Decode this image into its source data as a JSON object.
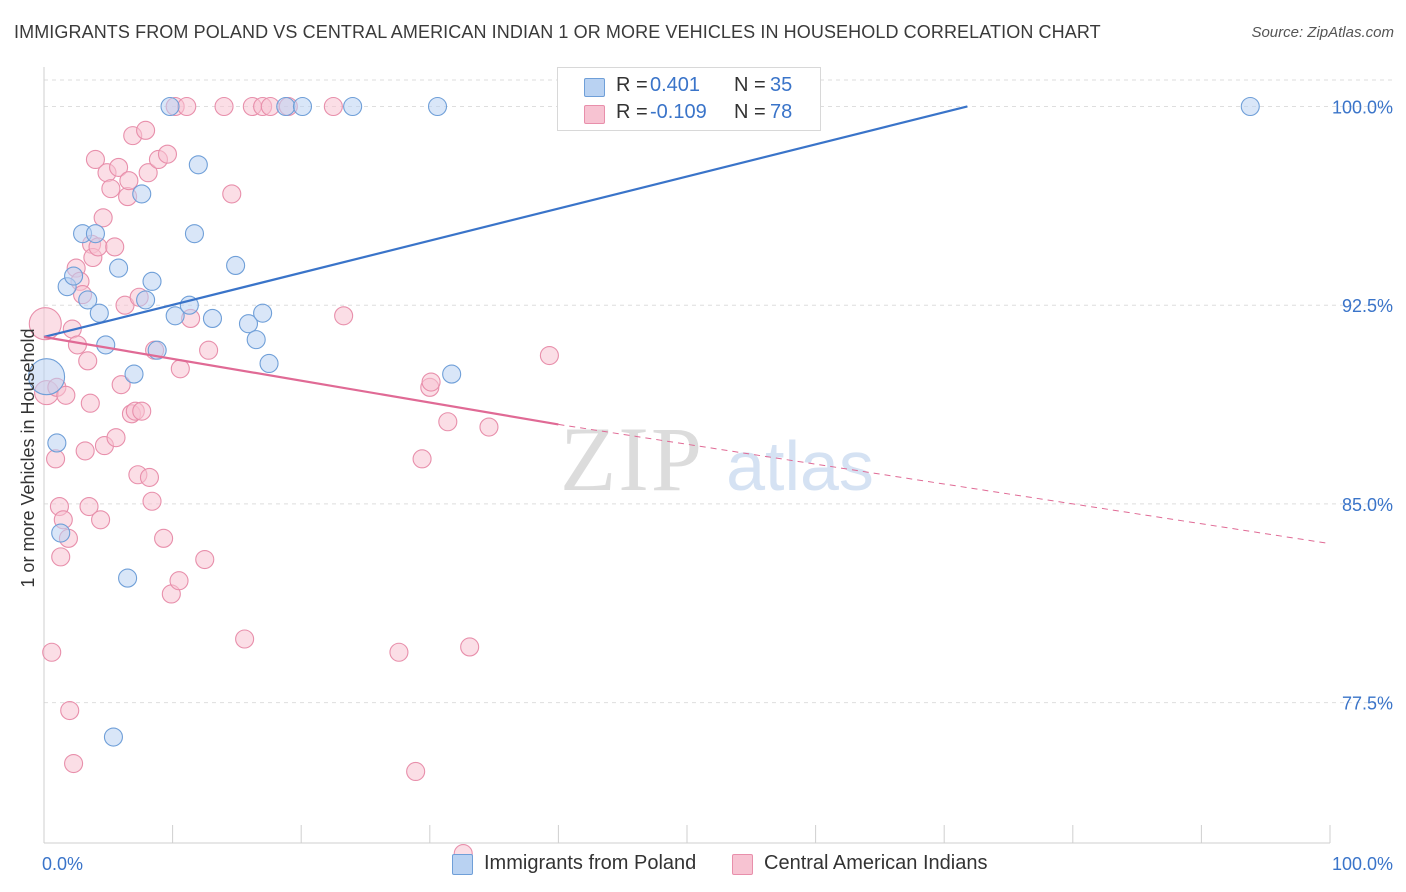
{
  "title": "IMMIGRANTS FROM POLAND VS CENTRAL AMERICAN INDIAN 1 OR MORE VEHICLES IN HOUSEHOLD CORRELATION CHART",
  "source": "Source: ZipAtlas.com",
  "watermark": {
    "zip": "ZIP",
    "atlas": "atlas"
  },
  "legend": {
    "r_label": "R =",
    "n_label": "N =",
    "series": [
      {
        "r": "0.401",
        "n": "35"
      },
      {
        "r": "-0.109",
        "n": "78"
      }
    ]
  },
  "colors": {
    "blue_fill": "#b9d2f2",
    "blue_stroke": "#6f9fd8",
    "blue_line": "#3a74c9",
    "pink_fill": "#f7c3d2",
    "pink_stroke": "#e88fab",
    "pink_line": "#e06a95",
    "value_text": "#3a74c9",
    "grid": "#dedede"
  },
  "chart_data": {
    "type": "scatter",
    "title": "IMMIGRANTS FROM POLAND VS CENTRAL AMERICAN INDIAN 1 OR MORE VEHICLES IN HOUSEHOLD CORRELATION CHART",
    "xlabel": "",
    "ylabel": "1 or more Vehicles in Household",
    "xlim": [
      0,
      100
    ],
    "ylim": [
      72.2,
      101.0
    ],
    "x_tick_labels": [
      {
        "value": 0,
        "label": "0.0%"
      },
      {
        "value": 100,
        "label": "100.0%"
      }
    ],
    "y_ticks": [
      {
        "value": 100.0,
        "label": "100.0%"
      },
      {
        "value": 92.5,
        "label": "92.5%"
      },
      {
        "value": 85.0,
        "label": "85.0%"
      },
      {
        "value": 77.5,
        "label": "77.5%"
      }
    ],
    "x_minor_ticks": [
      10,
      20,
      30,
      40,
      50,
      60,
      70,
      80,
      90,
      100
    ],
    "series": [
      {
        "name": "Immigrants from Poland",
        "color": "blue",
        "trend": {
          "x0": 0,
          "y0": 91.3,
          "x1": 71.8,
          "y1": 100.0
        },
        "points": [
          [
            0.2,
            89.8,
            18
          ],
          [
            1.0,
            87.3,
            9
          ],
          [
            1.3,
            83.9,
            9
          ],
          [
            1.8,
            93.2,
            9
          ],
          [
            2.3,
            93.6,
            9
          ],
          [
            3.0,
            95.2,
            9
          ],
          [
            3.4,
            92.7,
            9
          ],
          [
            4.0,
            95.2,
            9
          ],
          [
            4.3,
            92.2,
            9
          ],
          [
            4.8,
            91.0,
            9
          ],
          [
            5.4,
            76.2,
            9
          ],
          [
            5.8,
            93.9,
            9
          ],
          [
            6.5,
            82.2,
            9
          ],
          [
            7.0,
            89.9,
            9
          ],
          [
            7.6,
            96.7,
            9
          ],
          [
            7.9,
            92.7,
            9
          ],
          [
            8.4,
            93.4,
            9
          ],
          [
            8.8,
            90.8,
            9
          ],
          [
            9.8,
            100.0,
            9
          ],
          [
            10.2,
            92.1,
            9
          ],
          [
            11.3,
            92.5,
            9
          ],
          [
            11.7,
            95.2,
            9
          ],
          [
            12.0,
            97.8,
            9
          ],
          [
            13.1,
            92.0,
            9
          ],
          [
            14.9,
            94.0,
            9
          ],
          [
            15.9,
            91.8,
            9
          ],
          [
            16.5,
            91.2,
            9
          ],
          [
            17.0,
            92.2,
            9
          ],
          [
            17.5,
            90.3,
            9
          ],
          [
            18.8,
            100.0,
            9
          ],
          [
            20.1,
            100.0,
            9
          ],
          [
            24.0,
            100.0,
            9
          ],
          [
            30.6,
            100.0,
            9
          ],
          [
            31.7,
            89.9,
            9
          ],
          [
            93.8,
            100.0,
            9
          ]
        ]
      },
      {
        "name": "Central American Indians",
        "color": "pink",
        "trend": {
          "x0": 0,
          "y0": 91.3,
          "x1": 40.0,
          "y1": 88.0,
          "dash_x1": 100,
          "dash_y1": 83.5
        },
        "points": [
          [
            0.1,
            91.8,
            16
          ],
          [
            0.2,
            89.2,
            12
          ],
          [
            0.6,
            79.4,
            9
          ],
          [
            0.9,
            86.7,
            9
          ],
          [
            1.0,
            89.4,
            9
          ],
          [
            1.2,
            84.9,
            9
          ],
          [
            1.3,
            83.0,
            9
          ],
          [
            1.5,
            84.4,
            9
          ],
          [
            1.7,
            89.1,
            9
          ],
          [
            1.9,
            83.7,
            9
          ],
          [
            2.0,
            77.2,
            9
          ],
          [
            2.2,
            91.6,
            9
          ],
          [
            2.3,
            75.2,
            9
          ],
          [
            2.5,
            93.9,
            9
          ],
          [
            2.6,
            91.0,
            9
          ],
          [
            2.8,
            93.4,
            9
          ],
          [
            3.0,
            92.9,
            9
          ],
          [
            3.2,
            87.0,
            9
          ],
          [
            3.4,
            90.4,
            9
          ],
          [
            3.5,
            84.9,
            9
          ],
          [
            3.6,
            88.8,
            9
          ],
          [
            3.7,
            94.8,
            9
          ],
          [
            3.8,
            94.3,
            9
          ],
          [
            4.0,
            98.0,
            9
          ],
          [
            4.2,
            94.7,
            9
          ],
          [
            4.4,
            84.4,
            9
          ],
          [
            4.6,
            95.8,
            9
          ],
          [
            4.7,
            87.2,
            9
          ],
          [
            4.9,
            97.5,
            9
          ],
          [
            5.2,
            96.9,
            9
          ],
          [
            5.5,
            94.7,
            9
          ],
          [
            5.6,
            87.5,
            9
          ],
          [
            5.8,
            97.7,
            9
          ],
          [
            6.0,
            89.5,
            9
          ],
          [
            6.3,
            92.5,
            9
          ],
          [
            6.5,
            96.6,
            9
          ],
          [
            6.6,
            97.2,
            9
          ],
          [
            6.8,
            88.4,
            9
          ],
          [
            6.9,
            98.9,
            9
          ],
          [
            7.1,
            88.5,
            9
          ],
          [
            7.3,
            86.1,
            9
          ],
          [
            7.4,
            92.8,
            9
          ],
          [
            7.6,
            88.5,
            9
          ],
          [
            7.9,
            99.1,
            9
          ],
          [
            8.1,
            97.5,
            9
          ],
          [
            8.2,
            86.0,
            9
          ],
          [
            8.4,
            85.1,
            9
          ],
          [
            8.6,
            90.8,
            9
          ],
          [
            8.9,
            98.0,
            9
          ],
          [
            9.3,
            83.7,
            9
          ],
          [
            9.6,
            98.2,
            9
          ],
          [
            9.9,
            81.6,
            9
          ],
          [
            10.2,
            100.0,
            9
          ],
          [
            10.5,
            82.1,
            9
          ],
          [
            10.6,
            90.1,
            9
          ],
          [
            11.1,
            100.0,
            9
          ],
          [
            11.4,
            92.0,
            9
          ],
          [
            12.5,
            82.9,
            9
          ],
          [
            12.8,
            90.8,
            9
          ],
          [
            14.0,
            100.0,
            9
          ],
          [
            14.6,
            96.7,
            9
          ],
          [
            15.6,
            79.9,
            9
          ],
          [
            16.2,
            100.0,
            9
          ],
          [
            17.0,
            100.0,
            9
          ],
          [
            17.6,
            100.0,
            9
          ],
          [
            19.0,
            100.0,
            9
          ],
          [
            22.5,
            100.0,
            9
          ],
          [
            23.3,
            92.1,
            9
          ],
          [
            27.6,
            79.4,
            9
          ],
          [
            28.9,
            74.9,
            9
          ],
          [
            29.4,
            86.7,
            9
          ],
          [
            30.0,
            89.4,
            9
          ],
          [
            30.1,
            89.6,
            9
          ],
          [
            31.4,
            88.1,
            9
          ],
          [
            32.6,
            71.8,
            9
          ],
          [
            33.1,
            79.6,
            9
          ],
          [
            34.6,
            87.9,
            9
          ],
          [
            39.3,
            90.6,
            9
          ]
        ]
      }
    ]
  },
  "bottom_legend": [
    {
      "label": "Immigrants from Poland"
    },
    {
      "label": "Central American Indians"
    }
  ]
}
